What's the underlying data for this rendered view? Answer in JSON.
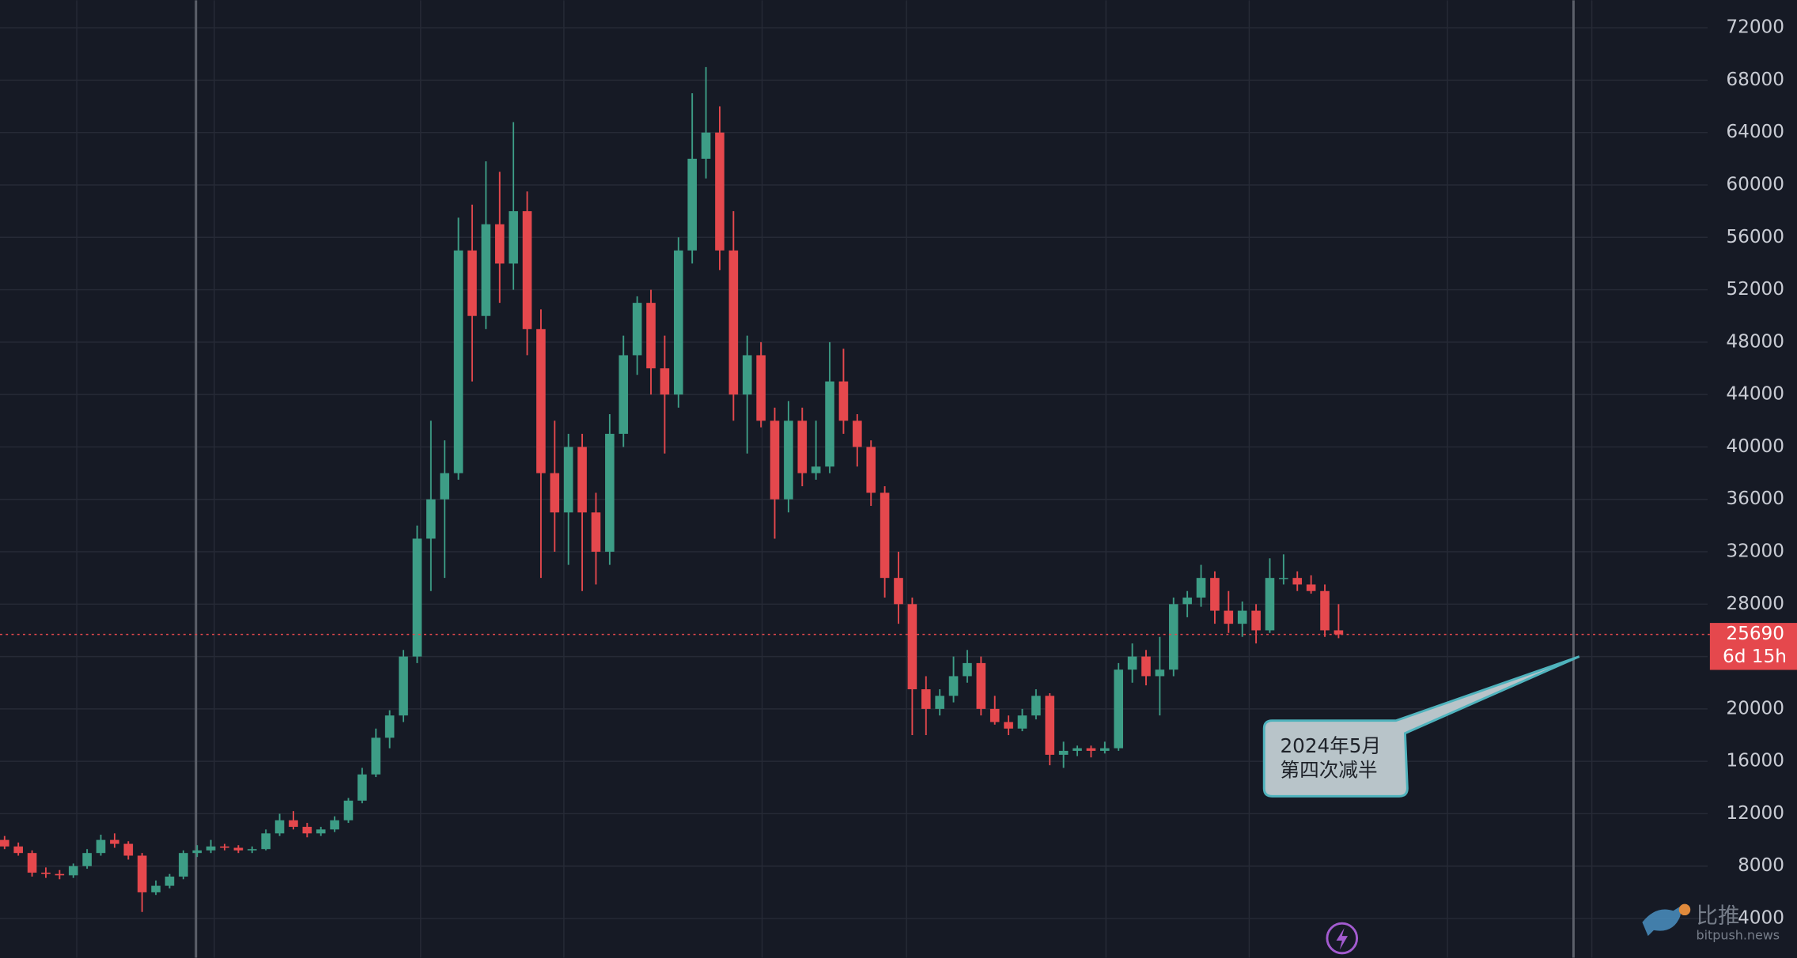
{
  "chart_data": {
    "type": "candlestick",
    "up_color": "#3d9d86",
    "down_color": "#e5484d",
    "ylim": [
      1005,
      74100
    ],
    "yticks": [
      4000,
      8000,
      12000,
      16000,
      20000,
      24000,
      28000,
      32000,
      36000,
      40000,
      44000,
      48000,
      52000,
      56000,
      60000,
      64000,
      68000,
      72000
    ],
    "grid": true,
    "current_price": 25690,
    "countdown": "6d 15h",
    "annotation": [
      "2024年5月",
      "第四次减半"
    ],
    "watermark": {
      "name": "比推",
      "site": "bitpush.news"
    },
    "candles": [
      [
        10000,
        10300,
        9300,
        9500
      ],
      [
        9500,
        9800,
        8800,
        9000
      ],
      [
        9000,
        9200,
        7200,
        7500
      ],
      [
        7500,
        7900,
        7100,
        7400
      ],
      [
        7400,
        7700,
        7000,
        7300
      ],
      [
        7300,
        8200,
        7100,
        8000
      ],
      [
        8000,
        9300,
        7800,
        9000
      ],
      [
        9000,
        10400,
        8800,
        10000
      ],
      [
        10000,
        10500,
        9400,
        9700
      ],
      [
        9700,
        9900,
        8500,
        8800
      ],
      [
        8800,
        9000,
        4500,
        6000
      ],
      [
        6000,
        6900,
        5800,
        6500
      ],
      [
        6500,
        7400,
        6300,
        7200
      ],
      [
        7200,
        9200,
        7000,
        9000
      ],
      [
        9000,
        9600,
        8700,
        9200
      ],
      [
        9200,
        10000,
        9000,
        9500
      ],
      [
        9500,
        9700,
        9200,
        9400
      ],
      [
        9400,
        9600,
        9000,
        9200
      ],
      [
        9200,
        9500,
        9000,
        9300
      ],
      [
        9300,
        10800,
        9200,
        10500
      ],
      [
        10500,
        12000,
        10300,
        11500
      ],
      [
        11500,
        12200,
        10800,
        11000
      ],
      [
        11000,
        11300,
        10200,
        10500
      ],
      [
        10500,
        11000,
        10300,
        10800
      ],
      [
        10800,
        11800,
        10600,
        11500
      ],
      [
        11500,
        13200,
        11300,
        13000
      ],
      [
        13000,
        15500,
        12800,
        15000
      ],
      [
        15000,
        18500,
        14800,
        17800
      ],
      [
        17800,
        19900,
        17000,
        19500
      ],
      [
        19500,
        24500,
        19000,
        24000
      ],
      [
        24000,
        34000,
        23500,
        33000
      ],
      [
        33000,
        42000,
        29000,
        36000
      ],
      [
        36000,
        40500,
        30000,
        38000
      ],
      [
        38000,
        57500,
        37500,
        55000
      ],
      [
        55000,
        58500,
        45000,
        50000
      ],
      [
        50000,
        61800,
        49000,
        57000
      ],
      [
        57000,
        61000,
        51000,
        54000
      ],
      [
        54000,
        64800,
        52000,
        58000
      ],
      [
        58000,
        59500,
        47000,
        49000
      ],
      [
        49000,
        50500,
        30000,
        38000
      ],
      [
        38000,
        42000,
        32000,
        35000
      ],
      [
        35000,
        41000,
        31000,
        40000
      ],
      [
        40000,
        41000,
        29000,
        35000
      ],
      [
        35000,
        36500,
        29500,
        32000
      ],
      [
        32000,
        42500,
        31000,
        41000
      ],
      [
        41000,
        48500,
        40000,
        47000
      ],
      [
        47000,
        51500,
        45500,
        51000
      ],
      [
        51000,
        52000,
        44000,
        46000
      ],
      [
        46000,
        48500,
        39500,
        44000
      ],
      [
        44000,
        56000,
        43000,
        55000
      ],
      [
        55000,
        67000,
        54000,
        62000
      ],
      [
        62000,
        69000,
        60500,
        64000
      ],
      [
        64000,
        66000,
        53500,
        55000
      ],
      [
        55000,
        58000,
        42000,
        44000
      ],
      [
        44000,
        48500,
        39500,
        47000
      ],
      [
        47000,
        48000,
        41500,
        42000
      ],
      [
        42000,
        43000,
        33000,
        36000
      ],
      [
        36000,
        43500,
        35000,
        42000
      ],
      [
        42000,
        43000,
        37000,
        38000
      ],
      [
        38000,
        42000,
        37500,
        38500
      ],
      [
        38500,
        48000,
        38000,
        45000
      ],
      [
        45000,
        47500,
        41000,
        42000
      ],
      [
        42000,
        42500,
        38500,
        40000
      ],
      [
        40000,
        40500,
        35500,
        36500
      ],
      [
        36500,
        37000,
        28500,
        30000
      ],
      [
        30000,
        32000,
        26500,
        28000
      ],
      [
        28000,
        28500,
        18000,
        21500
      ],
      [
        21500,
        22500,
        18000,
        20000
      ],
      [
        20000,
        21500,
        19500,
        21000
      ],
      [
        21000,
        24000,
        20500,
        22500
      ],
      [
        22500,
        24500,
        22000,
        23500
      ],
      [
        23500,
        24000,
        19500,
        20000
      ],
      [
        20000,
        21000,
        18800,
        19000
      ],
      [
        19000,
        19500,
        18000,
        18500
      ],
      [
        18500,
        20000,
        18300,
        19500
      ],
      [
        19500,
        21500,
        19200,
        21000
      ],
      [
        21000,
        21200,
        15700,
        16500
      ],
      [
        16500,
        17500,
        15500,
        16800
      ],
      [
        16800,
        17200,
        16400,
        17000
      ],
      [
        17000,
        17200,
        16300,
        16800
      ],
      [
        16800,
        17500,
        16600,
        17000
      ],
      [
        17000,
        23500,
        16800,
        23000
      ],
      [
        23000,
        25000,
        22000,
        24000
      ],
      [
        24000,
        24500,
        21800,
        22500
      ],
      [
        22500,
        25500,
        19500,
        23000
      ],
      [
        23000,
        28500,
        22500,
        28000
      ],
      [
        28000,
        29000,
        27000,
        28500
      ],
      [
        28500,
        31000,
        27800,
        30000
      ],
      [
        30000,
        30500,
        26500,
        27500
      ],
      [
        27500,
        29000,
        25800,
        26500
      ],
      [
        26500,
        28200,
        25500,
        27500
      ],
      [
        27500,
        28000,
        25000,
        26000
      ],
      [
        26000,
        31500,
        25800,
        30000
      ],
      [
        30000,
        31800,
        29500,
        30000
      ],
      [
        30000,
        30500,
        29000,
        29500
      ],
      [
        29500,
        30200,
        28800,
        29000
      ],
      [
        29000,
        29500,
        25500,
        26000
      ],
      [
        26000,
        28000,
        25400,
        25690
      ]
    ]
  }
}
